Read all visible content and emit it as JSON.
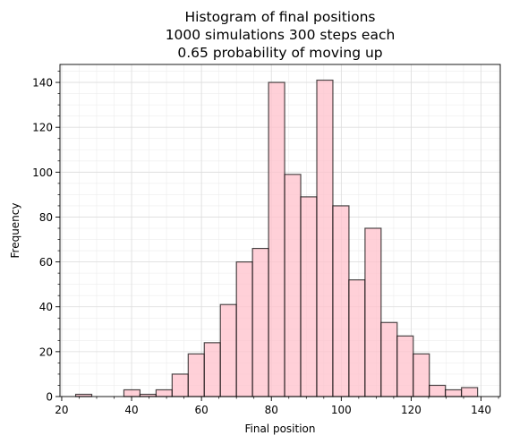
{
  "chart_data": {
    "type": "bar",
    "title_lines": [
      "Histogram of final positions",
      "1000 simulations 300 steps each",
      "0.65 probability of moving up"
    ],
    "xlabel": "Final position",
    "ylabel": "Frequency",
    "xlim": [
      19.5,
      145.5
    ],
    "ylim": [
      0,
      148
    ],
    "xticks": [
      20,
      40,
      60,
      80,
      100,
      120,
      140
    ],
    "yticks": [
      0,
      20,
      40,
      60,
      80,
      100,
      120,
      140
    ],
    "grid": true,
    "bar_color": "#ffc0cb",
    "bar_edge_color": "#000000",
    "bins": [
      {
        "x0": 24.0,
        "x1": 28.6,
        "count": 1
      },
      {
        "x0": 28.6,
        "x1": 33.2,
        "count": 0
      },
      {
        "x0": 33.2,
        "x1": 37.8,
        "count": 0
      },
      {
        "x0": 37.8,
        "x1": 42.4,
        "count": 3
      },
      {
        "x0": 42.4,
        "x1": 47.0,
        "count": 1
      },
      {
        "x0": 47.0,
        "x1": 51.6,
        "count": 3
      },
      {
        "x0": 51.6,
        "x1": 56.2,
        "count": 10
      },
      {
        "x0": 56.2,
        "x1": 60.8,
        "count": 19
      },
      {
        "x0": 60.8,
        "x1": 65.4,
        "count": 24
      },
      {
        "x0": 65.4,
        "x1": 70.0,
        "count": 41
      },
      {
        "x0": 70.0,
        "x1": 74.6,
        "count": 60
      },
      {
        "x0": 74.6,
        "x1": 79.2,
        "count": 66
      },
      {
        "x0": 79.2,
        "x1": 83.8,
        "count": 140
      },
      {
        "x0": 83.8,
        "x1": 88.4,
        "count": 99
      },
      {
        "x0": 88.4,
        "x1": 93.0,
        "count": 89
      },
      {
        "x0": 93.0,
        "x1": 97.6,
        "count": 141
      },
      {
        "x0": 97.6,
        "x1": 102.2,
        "count": 85
      },
      {
        "x0": 102.2,
        "x1": 106.8,
        "count": 52
      },
      {
        "x0": 106.8,
        "x1": 111.4,
        "count": 75
      },
      {
        "x0": 111.4,
        "x1": 116.0,
        "count": 33
      },
      {
        "x0": 116.0,
        "x1": 120.6,
        "count": 27
      },
      {
        "x0": 120.6,
        "x1": 125.2,
        "count": 19
      },
      {
        "x0": 125.2,
        "x1": 129.8,
        "count": 5
      },
      {
        "x0": 129.8,
        "x1": 134.4,
        "count": 3
      },
      {
        "x0": 134.4,
        "x1": 139.0,
        "count": 4
      }
    ]
  }
}
